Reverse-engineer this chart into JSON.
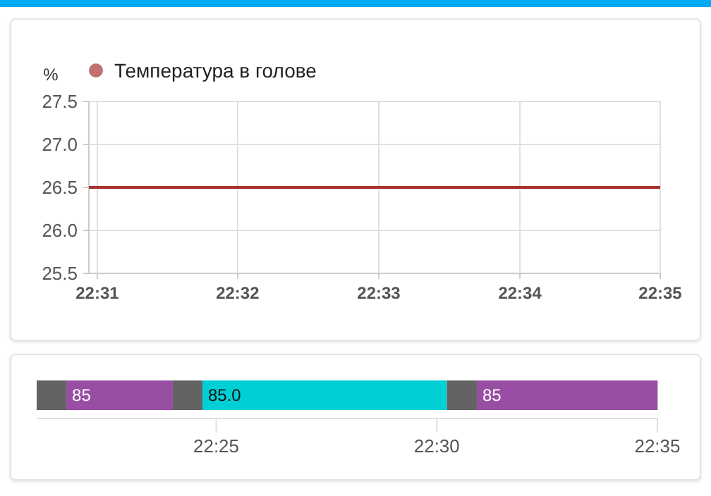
{
  "chart_data": [
    {
      "type": "line",
      "ylabel": "%",
      "x": [
        22.5157,
        22.5833
      ],
      "series": [
        {
          "name": "Температура в голове",
          "color": "#a83232",
          "values": [
            26.5,
            26.5
          ]
        }
      ],
      "xlim": [
        22.5157,
        22.5833
      ],
      "xticks": [
        {
          "value": 22.5167,
          "label": "22:31"
        },
        {
          "value": 22.5333,
          "label": "22:32"
        },
        {
          "value": 22.55,
          "label": "22:33"
        },
        {
          "value": 22.5667,
          "label": "22:34"
        },
        {
          "value": 22.5833,
          "label": "22:35"
        }
      ],
      "ylim": [
        25.5,
        27.5
      ],
      "yticks": [
        {
          "value": 25.5,
          "label": "25.5"
        },
        {
          "value": 26,
          "label": "26.0"
        },
        {
          "value": 26.5,
          "label": "26.5"
        },
        {
          "value": 27,
          "label": "27.0"
        },
        {
          "value": 27.5,
          "label": "27.5"
        }
      ],
      "grid": true,
      "legend": "top left"
    },
    {
      "type": "bar",
      "orientation": "horizontal",
      "categories": [
        null
      ],
      "series": [
        {
          "color": "#636363",
          "base": [
            22.3489
          ],
          "values": [
            0.0112
          ]
        },
        {
          "name": "85",
          "color": "#984ea3",
          "base": [
            22.3601
          ],
          "values": [
            0.0402
          ]
        },
        {
          "color": "#636363",
          "base": [
            22.4003
          ],
          "values": [
            0.0112
          ]
        },
        {
          "name": "85.0",
          "color": "#00d0d6",
          "base": [
            22.4115
          ],
          "values": [
            0.0923
          ]
        },
        {
          "color": "#636363",
          "base": [
            22.5038
          ],
          "values": [
            0.0113
          ]
        },
        {
          "name": "85",
          "color": "#984ea3",
          "base": [
            22.5151
          ],
          "values": [
            0.0683
          ]
        }
      ],
      "xlim": [
        22.3489,
        22.5833
      ],
      "xticks": [
        {
          "value": 22.4167,
          "label": "22:25"
        },
        {
          "value": 22.5,
          "label": "22:30"
        },
        {
          "value": 22.5833,
          "label": "22:35"
        }
      ]
    }
  ]
}
